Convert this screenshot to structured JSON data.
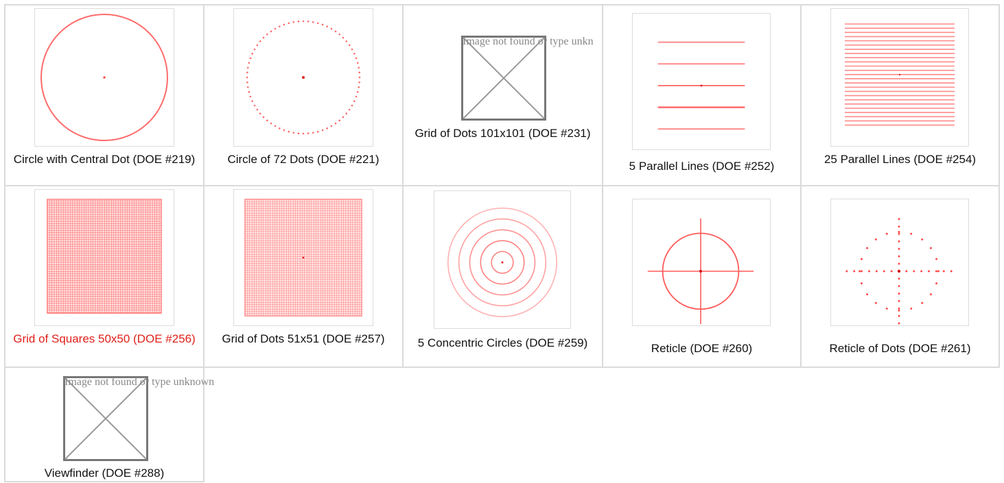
{
  "gallery": {
    "cells": [
      {
        "caption": "Circle with Central Dot (DOE #219)"
      },
      {
        "caption": "Circle of 72 Dots (DOE #221)"
      },
      {
        "caption": "Grid of Dots 101x101 (DOE #231)",
        "missing_text": "Image not found or type unkn"
      },
      {
        "caption": "5 Parallel Lines (DOE #252)"
      },
      {
        "caption": "25 Parallel Lines (DOE #254)"
      },
      {
        "caption": "Grid of Squares 50x50 (DOE #256)"
      },
      {
        "caption": "Grid of Dots 51x51 (DOE #257)"
      },
      {
        "caption": "5 Concentric Circles (DOE #259)"
      },
      {
        "caption": "Reticle (DOE #260)"
      },
      {
        "caption": "Reticle of Dots (DOE #261)"
      },
      {
        "caption": "Viewfinder (DOE #288)",
        "missing_text": "Image not found or type unknown"
      }
    ]
  },
  "colors": {
    "pattern": "#ff6b6b",
    "link_active": "#e0201a",
    "grid_line": "#dadada",
    "placeholder": "#777777"
  },
  "icons": [
    "broken-image-icon"
  ]
}
